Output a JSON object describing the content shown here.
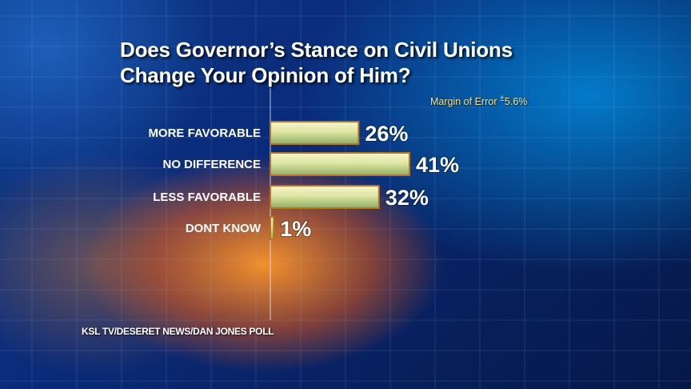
{
  "title_lines": [
    "Does Governor’s Stance on Civil Unions",
    "Change Your Opinion of Him?"
  ],
  "margin_of_error": {
    "label": "Margin of Error",
    "symbol": "±",
    "value": "5.6%"
  },
  "source": "KSL TV/DESERET NEWS/DAN JONES POLL",
  "colors": {
    "bar_light": "#f3f3c0",
    "bar_mid": "#c8d68c",
    "bar_dark": "#8aa860",
    "bar_border": "#b8741f"
  },
  "chart_data": {
    "type": "bar",
    "orientation": "horizontal",
    "categories": [
      "MORE FAVORABLE",
      "NO DIFFERENCE",
      "LESS FAVORABLE",
      "DONT KNOW"
    ],
    "values": [
      26,
      41,
      32,
      1
    ],
    "value_labels": [
      "26%",
      "41%",
      "32%",
      "1%"
    ],
    "title": "Does Governor’s Stance on Civil Unions Change Your Opinion of Him?",
    "xlim": [
      0,
      45
    ],
    "grid": true
  }
}
